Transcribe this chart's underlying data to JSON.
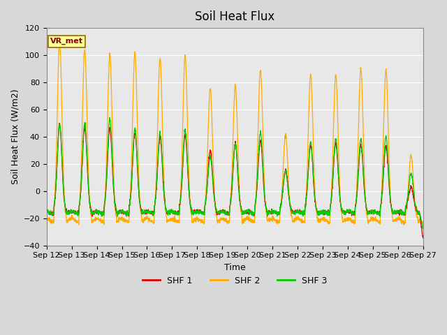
{
  "title": "Soil Heat Flux",
  "xlabel": "Time",
  "ylabel": "Soil Heat Flux (W/m2)",
  "ylim": [
    -40,
    120
  ],
  "yticks": [
    -40,
    -20,
    0,
    20,
    40,
    60,
    80,
    100,
    120
  ],
  "xtick_labels": [
    "Sep 12",
    "Sep 13",
    "Sep 14",
    "Sep 15",
    "Sep 16",
    "Sep 17",
    "Sep 18",
    "Sep 19",
    "Sep 20",
    "Sep 21",
    "Sep 22",
    "Sep 23",
    "Sep 24",
    "Sep 25",
    "Sep 26",
    "Sep 27"
  ],
  "colors": {
    "SHF1": "#dd0000",
    "SHF2": "#ffaa00",
    "SHF3": "#00cc00"
  },
  "legend_labels": [
    "SHF 1",
    "SHF 2",
    "SHF 3"
  ],
  "annotation": "VR_met",
  "bg_color": "#e8e8e8",
  "grid_color": "#ffffff",
  "title_fontsize": 12,
  "axis_fontsize": 9,
  "tick_fontsize": 8,
  "shf2_peaks": [
    106,
    100,
    96,
    98,
    93,
    95,
    71,
    73,
    85,
    37,
    82,
    82,
    86,
    85,
    22
  ],
  "shf1_peaks": [
    46,
    44,
    43,
    40,
    37,
    38,
    27,
    32,
    34,
    12,
    31,
    32,
    31,
    30,
    0
  ],
  "shf3_peaks": [
    46,
    47,
    50,
    43,
    40,
    42,
    22,
    32,
    40,
    12,
    33,
    35,
    35,
    37,
    10
  ],
  "shf1_night": -15,
  "shf2_night": -20,
  "shf3_night": -15
}
